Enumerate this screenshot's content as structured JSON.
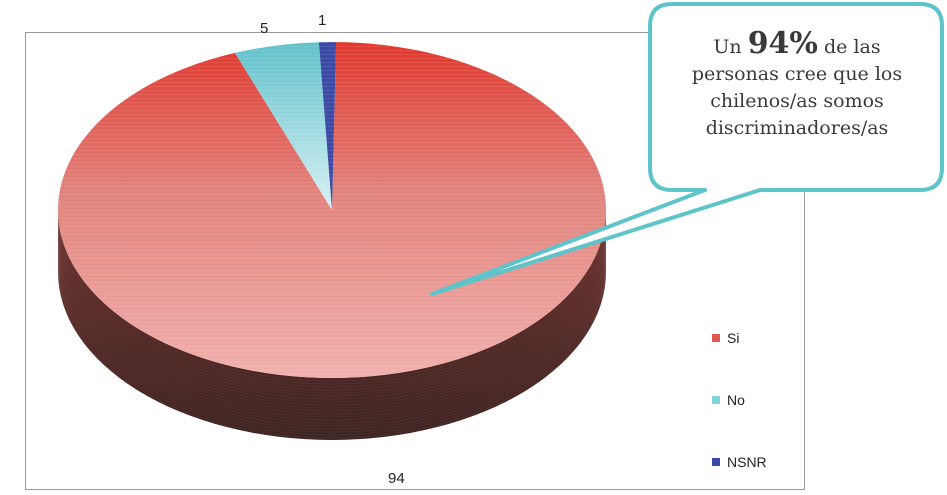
{
  "callout": {
    "prefix": "Un",
    "highlight": "94%",
    "line1_rest": "de las",
    "line2": "personas cree que los",
    "line3": "chilenos/as somos",
    "line4": "discriminadores/as"
  },
  "chart_data": {
    "type": "pie",
    "categories": [
      "Si",
      "No",
      "NSNR"
    ],
    "values": [
      94,
      5,
      1
    ],
    "data_labels": [
      "94",
      "5",
      "1"
    ],
    "colors": {
      "Si": "#e05a52",
      "No": "#7fd3dc",
      "NSNR": "#3b4aa8"
    },
    "legend_position": "right",
    "style": "3d"
  }
}
